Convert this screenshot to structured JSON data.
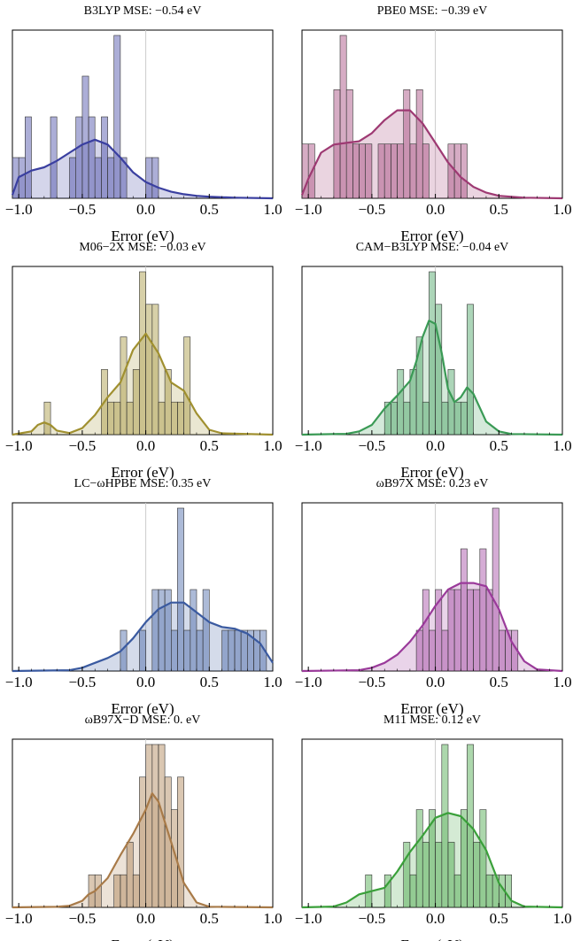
{
  "chart_data": [
    {
      "type": "bar",
      "title": "B3LYP MSE: −0.54 eV",
      "xlabel": "Error (eV)",
      "color": "#3a3fa0",
      "xlim": [
        -1.05,
        1.0
      ],
      "xticks": [
        "−1.0",
        "−0.5",
        "0.0",
        "0.5",
        "1.0"
      ],
      "xtick_values": [
        -1.0,
        -0.5,
        0.0,
        0.5,
        1.0
      ],
      "bin_width": 0.05,
      "bins": [
        {
          "x": -1.05,
          "count": 1
        },
        {
          "x": -1.0,
          "count": 1
        },
        {
          "x": -0.95,
          "count": 2
        },
        {
          "x": -0.75,
          "count": 2
        },
        {
          "x": -0.6,
          "count": 1
        },
        {
          "x": -0.55,
          "count": 2
        },
        {
          "x": -0.5,
          "count": 3
        },
        {
          "x": -0.45,
          "count": 2
        },
        {
          "x": -0.4,
          "count": 1
        },
        {
          "x": -0.35,
          "count": 2
        },
        {
          "x": -0.3,
          "count": 1
        },
        {
          "x": -0.25,
          "count": 4
        },
        {
          "x": -0.2,
          "count": 1
        },
        {
          "x": 0.0,
          "count": 1
        },
        {
          "x": 0.05,
          "count": 1
        }
      ],
      "density": [
        [
          -1.05,
          0.02
        ],
        [
          -1.0,
          0.13
        ],
        [
          -0.9,
          0.17
        ],
        [
          -0.8,
          0.19
        ],
        [
          -0.7,
          0.23
        ],
        [
          -0.6,
          0.28
        ],
        [
          -0.5,
          0.33
        ],
        [
          -0.4,
          0.36
        ],
        [
          -0.3,
          0.33
        ],
        [
          -0.2,
          0.25
        ],
        [
          -0.1,
          0.16
        ],
        [
          0.0,
          0.1
        ],
        [
          0.1,
          0.065
        ],
        [
          0.2,
          0.04
        ],
        [
          0.3,
          0.025
        ],
        [
          0.4,
          0.015
        ],
        [
          0.5,
          0.01
        ],
        [
          0.7,
          0.004
        ],
        [
          1.0,
          0.0
        ]
      ],
      "density_max": 1.0,
      "count_max": 4
    },
    {
      "type": "bar",
      "title": "PBE0 MSE: −0.39 eV",
      "xlabel": "Error (eV)",
      "color": "#9e3a73",
      "xlim": [
        -1.05,
        1.0
      ],
      "xticks": [
        "−1.0",
        "−0.5",
        "0.0",
        "0.5",
        "1.0"
      ],
      "xtick_values": [
        -1.0,
        -0.5,
        0.0,
        0.5,
        1.0
      ],
      "bin_width": 0.05,
      "bins": [
        {
          "x": -1.05,
          "count": 1
        },
        {
          "x": -1.0,
          "count": 1
        },
        {
          "x": -0.8,
          "count": 2
        },
        {
          "x": -0.75,
          "count": 3
        },
        {
          "x": -0.7,
          "count": 2
        },
        {
          "x": -0.65,
          "count": 1
        },
        {
          "x": -0.6,
          "count": 1
        },
        {
          "x": -0.55,
          "count": 1
        },
        {
          "x": -0.45,
          "count": 1
        },
        {
          "x": -0.4,
          "count": 1
        },
        {
          "x": -0.35,
          "count": 1
        },
        {
          "x": -0.3,
          "count": 1
        },
        {
          "x": -0.25,
          "count": 2
        },
        {
          "x": -0.2,
          "count": 1
        },
        {
          "x": -0.15,
          "count": 2
        },
        {
          "x": -0.1,
          "count": 1
        },
        {
          "x": 0.1,
          "count": 1
        },
        {
          "x": 0.15,
          "count": 1
        },
        {
          "x": 0.2,
          "count": 1
        }
      ],
      "density": [
        [
          -1.05,
          0.02
        ],
        [
          -1.0,
          0.12
        ],
        [
          -0.9,
          0.28
        ],
        [
          -0.8,
          0.33
        ],
        [
          -0.7,
          0.34
        ],
        [
          -0.6,
          0.35
        ],
        [
          -0.5,
          0.4
        ],
        [
          -0.4,
          0.48
        ],
        [
          -0.3,
          0.54
        ],
        [
          -0.2,
          0.54
        ],
        [
          -0.1,
          0.46
        ],
        [
          0.0,
          0.34
        ],
        [
          0.1,
          0.22
        ],
        [
          0.2,
          0.13
        ],
        [
          0.3,
          0.07
        ],
        [
          0.4,
          0.035
        ],
        [
          0.5,
          0.015
        ],
        [
          0.7,
          0.004
        ],
        [
          1.0,
          0.0
        ]
      ],
      "density_max": 1.0,
      "count_max": 3
    },
    {
      "type": "bar",
      "title": "M06−2X MSE: −0.03 eV",
      "xlabel": "Error (eV)",
      "color": "#a09030",
      "xlim": [
        -1.05,
        1.0
      ],
      "xticks": [
        "−1.0",
        "−0.5",
        "0.0",
        "0.5",
        "1.0"
      ],
      "xtick_values": [
        -1.0,
        -0.5,
        0.0,
        0.5,
        1.0
      ],
      "bin_width": 0.05,
      "bins": [
        {
          "x": -0.8,
          "count": 1
        },
        {
          "x": -0.35,
          "count": 2
        },
        {
          "x": -0.3,
          "count": 1
        },
        {
          "x": -0.25,
          "count": 1
        },
        {
          "x": -0.2,
          "count": 3
        },
        {
          "x": -0.15,
          "count": 1
        },
        {
          "x": -0.1,
          "count": 2
        },
        {
          "x": -0.05,
          "count": 5
        },
        {
          "x": 0.0,
          "count": 4
        },
        {
          "x": 0.05,
          "count": 4
        },
        {
          "x": 0.1,
          "count": 1
        },
        {
          "x": 0.15,
          "count": 2
        },
        {
          "x": 0.2,
          "count": 1
        },
        {
          "x": 0.25,
          "count": 1
        },
        {
          "x": 0.3,
          "count": 3
        }
      ],
      "density": [
        [
          -1.05,
          0.0
        ],
        [
          -0.9,
          0.02
        ],
        [
          -0.85,
          0.06
        ],
        [
          -0.8,
          0.075
        ],
        [
          -0.75,
          0.06
        ],
        [
          -0.7,
          0.025
        ],
        [
          -0.6,
          0.01
        ],
        [
          -0.5,
          0.04
        ],
        [
          -0.4,
          0.12
        ],
        [
          -0.3,
          0.23
        ],
        [
          -0.2,
          0.32
        ],
        [
          -0.1,
          0.52
        ],
        [
          0.0,
          0.62
        ],
        [
          0.1,
          0.5
        ],
        [
          0.2,
          0.32
        ],
        [
          0.3,
          0.27
        ],
        [
          0.4,
          0.13
        ],
        [
          0.5,
          0.03
        ],
        [
          0.6,
          0.008
        ],
        [
          1.0,
          0.0
        ]
      ],
      "density_max": 1.0,
      "count_max": 5
    },
    {
      "type": "bar",
      "title": "CAM−B3LYP MSE: −0.04 eV",
      "xlabel": "Error (eV)",
      "color": "#3a9a55",
      "xlim": [
        -1.05,
        1.0
      ],
      "xticks": [
        "−1.0",
        "−0.5",
        "0.0",
        "0.5",
        "1.0"
      ],
      "xtick_values": [
        -1.0,
        -0.5,
        0.0,
        0.5,
        1.0
      ],
      "bin_width": 0.05,
      "bins": [
        {
          "x": -0.4,
          "count": 1
        },
        {
          "x": -0.35,
          "count": 1
        },
        {
          "x": -0.3,
          "count": 2
        },
        {
          "x": -0.25,
          "count": 1
        },
        {
          "x": -0.2,
          "count": 2
        },
        {
          "x": -0.15,
          "count": 3
        },
        {
          "x": -0.1,
          "count": 1
        },
        {
          "x": -0.05,
          "count": 5
        },
        {
          "x": 0.0,
          "count": 4
        },
        {
          "x": 0.05,
          "count": 1
        },
        {
          "x": 0.1,
          "count": 2
        },
        {
          "x": 0.15,
          "count": 1
        },
        {
          "x": 0.2,
          "count": 1
        },
        {
          "x": 0.25,
          "count": 4
        }
      ],
      "density": [
        [
          -1.05,
          0.0
        ],
        [
          -0.7,
          0.005
        ],
        [
          -0.6,
          0.02
        ],
        [
          -0.5,
          0.06
        ],
        [
          -0.4,
          0.16
        ],
        [
          -0.3,
          0.24
        ],
        [
          -0.2,
          0.33
        ],
        [
          -0.15,
          0.45
        ],
        [
          -0.1,
          0.6
        ],
        [
          -0.05,
          0.7
        ],
        [
          0.0,
          0.68
        ],
        [
          0.05,
          0.5
        ],
        [
          0.1,
          0.28
        ],
        [
          0.15,
          0.2
        ],
        [
          0.2,
          0.23
        ],
        [
          0.25,
          0.29
        ],
        [
          0.3,
          0.25
        ],
        [
          0.4,
          0.08
        ],
        [
          0.5,
          0.02
        ],
        [
          0.6,
          0.004
        ],
        [
          1.0,
          0.0
        ]
      ],
      "density_max": 1.0,
      "count_max": 5
    },
    {
      "type": "bar",
      "title": "LC−ωHPBE MSE: 0.35 eV",
      "xlabel": "Error (eV)",
      "color": "#3a5aa0",
      "xlim": [
        -1.05,
        1.0
      ],
      "xticks": [
        "−1.0",
        "−0.5",
        "0.0",
        "0.5",
        "1.0"
      ],
      "xtick_values": [
        -1.0,
        -0.5,
        0.0,
        0.5,
        1.0
      ],
      "bin_width": 0.05,
      "bins": [
        {
          "x": -0.2,
          "count": 1
        },
        {
          "x": -0.05,
          "count": 1
        },
        {
          "x": 0.05,
          "count": 2
        },
        {
          "x": 0.1,
          "count": 2
        },
        {
          "x": 0.15,
          "count": 2
        },
        {
          "x": 0.2,
          "count": 1
        },
        {
          "x": 0.25,
          "count": 4
        },
        {
          "x": 0.3,
          "count": 1
        },
        {
          "x": 0.35,
          "count": 2
        },
        {
          "x": 0.4,
          "count": 1
        },
        {
          "x": 0.45,
          "count": 2
        },
        {
          "x": 0.6,
          "count": 1
        },
        {
          "x": 0.65,
          "count": 1
        },
        {
          "x": 0.7,
          "count": 1
        },
        {
          "x": 0.75,
          "count": 1
        },
        {
          "x": 0.8,
          "count": 1
        },
        {
          "x": 0.85,
          "count": 1
        },
        {
          "x": 0.9,
          "count": 1
        }
      ],
      "density": [
        [
          -1.05,
          0.0
        ],
        [
          -0.6,
          0.005
        ],
        [
          -0.5,
          0.02
        ],
        [
          -0.4,
          0.05
        ],
        [
          -0.3,
          0.08
        ],
        [
          -0.2,
          0.12
        ],
        [
          -0.1,
          0.2
        ],
        [
          0.0,
          0.3
        ],
        [
          0.1,
          0.38
        ],
        [
          0.2,
          0.42
        ],
        [
          0.3,
          0.42
        ],
        [
          0.4,
          0.36
        ],
        [
          0.5,
          0.3
        ],
        [
          0.6,
          0.27
        ],
        [
          0.7,
          0.26
        ],
        [
          0.8,
          0.23
        ],
        [
          0.9,
          0.17
        ],
        [
          1.0,
          0.05
        ]
      ],
      "density_max": 1.0,
      "count_max": 4
    },
    {
      "type": "bar",
      "title": "ωB97X MSE: 0.23 eV",
      "xlabel": "Error (eV)",
      "color": "#9a3a9a",
      "xlim": [
        -1.05,
        1.0
      ],
      "xticks": [
        "−1.0",
        "−0.5",
        "0.0",
        "0.5",
        "1.0"
      ],
      "xtick_values": [
        -1.0,
        -0.5,
        0.0,
        0.5,
        1.0
      ],
      "bin_width": 0.05,
      "bins": [
        {
          "x": -0.15,
          "count": 1
        },
        {
          "x": -0.1,
          "count": 2
        },
        {
          "x": -0.05,
          "count": 1
        },
        {
          "x": 0.0,
          "count": 2
        },
        {
          "x": 0.05,
          "count": 1
        },
        {
          "x": 0.1,
          "count": 2
        },
        {
          "x": 0.15,
          "count": 2
        },
        {
          "x": 0.2,
          "count": 3
        },
        {
          "x": 0.25,
          "count": 2
        },
        {
          "x": 0.3,
          "count": 2
        },
        {
          "x": 0.35,
          "count": 3
        },
        {
          "x": 0.4,
          "count": 2
        },
        {
          "x": 0.45,
          "count": 4
        },
        {
          "x": 0.5,
          "count": 1
        },
        {
          "x": 0.55,
          "count": 1
        },
        {
          "x": 0.6,
          "count": 1
        }
      ],
      "density": [
        [
          -1.05,
          0.0
        ],
        [
          -0.6,
          0.005
        ],
        [
          -0.5,
          0.02
        ],
        [
          -0.4,
          0.05
        ],
        [
          -0.3,
          0.1
        ],
        [
          -0.2,
          0.18
        ],
        [
          -0.1,
          0.28
        ],
        [
          0.0,
          0.4
        ],
        [
          0.1,
          0.5
        ],
        [
          0.2,
          0.54
        ],
        [
          0.3,
          0.54
        ],
        [
          0.4,
          0.52
        ],
        [
          0.5,
          0.38
        ],
        [
          0.6,
          0.18
        ],
        [
          0.7,
          0.06
        ],
        [
          0.8,
          0.01
        ],
        [
          1.0,
          0.0
        ]
      ],
      "density_max": 1.0,
      "count_max": 4
    },
    {
      "type": "bar",
      "title": "ωB97X−D MSE: 0. eV",
      "xlabel": "Error (eV)",
      "color": "#a87a48",
      "xlim": [
        -1.05,
        1.0
      ],
      "xticks": [
        "−1.0",
        "−0.5",
        "0.0",
        "0.5",
        "1.0"
      ],
      "xtick_values": [
        -1.0,
        -0.5,
        0.0,
        0.5,
        1.0
      ],
      "bin_width": 0.05,
      "bins": [
        {
          "x": -0.45,
          "count": 1
        },
        {
          "x": -0.4,
          "count": 1
        },
        {
          "x": -0.25,
          "count": 1
        },
        {
          "x": -0.2,
          "count": 1
        },
        {
          "x": -0.15,
          "count": 2
        },
        {
          "x": -0.1,
          "count": 1
        },
        {
          "x": -0.05,
          "count": 4
        },
        {
          "x": 0.0,
          "count": 5
        },
        {
          "x": 0.05,
          "count": 5
        },
        {
          "x": 0.1,
          "count": 5
        },
        {
          "x": 0.15,
          "count": 4
        },
        {
          "x": 0.2,
          "count": 3
        },
        {
          "x": 0.25,
          "count": 4
        }
      ],
      "density": [
        [
          -1.05,
          0.0
        ],
        [
          -0.7,
          0.003
        ],
        [
          -0.6,
          0.01
        ],
        [
          -0.5,
          0.04
        ],
        [
          -0.45,
          0.08
        ],
        [
          -0.4,
          0.1
        ],
        [
          -0.3,
          0.18
        ],
        [
          -0.2,
          0.32
        ],
        [
          -0.1,
          0.45
        ],
        [
          0.0,
          0.6
        ],
        [
          0.05,
          0.7
        ],
        [
          0.1,
          0.65
        ],
        [
          0.2,
          0.4
        ],
        [
          0.3,
          0.15
        ],
        [
          0.4,
          0.03
        ],
        [
          0.5,
          0.004
        ],
        [
          1.0,
          0.0
        ]
      ],
      "density_max": 1.0,
      "count_max": 5
    },
    {
      "type": "bar",
      "title": "M11 MSE: 0.12 eV",
      "xlabel": "Error (eV)",
      "color": "#3aa03a",
      "xlim": [
        -1.05,
        1.0
      ],
      "xticks": [
        "−1.0",
        "−0.5",
        "0.0",
        "0.5",
        "1.0"
      ],
      "xtick_values": [
        -1.0,
        -0.5,
        0.0,
        0.5,
        1.0
      ],
      "bin_width": 0.05,
      "bins": [
        {
          "x": -0.55,
          "count": 1
        },
        {
          "x": -0.4,
          "count": 1
        },
        {
          "x": -0.25,
          "count": 2
        },
        {
          "x": -0.2,
          "count": 1
        },
        {
          "x": -0.15,
          "count": 3
        },
        {
          "x": -0.1,
          "count": 2
        },
        {
          "x": -0.05,
          "count": 3
        },
        {
          "x": 0.0,
          "count": 2
        },
        {
          "x": 0.05,
          "count": 5
        },
        {
          "x": 0.1,
          "count": 2
        },
        {
          "x": 0.15,
          "count": 1
        },
        {
          "x": 0.2,
          "count": 3
        },
        {
          "x": 0.25,
          "count": 5
        },
        {
          "x": 0.3,
          "count": 2
        },
        {
          "x": 0.35,
          "count": 3
        },
        {
          "x": 0.4,
          "count": 1
        },
        {
          "x": 0.45,
          "count": 1
        },
        {
          "x": 0.5,
          "count": 1
        },
        {
          "x": 0.55,
          "count": 1
        }
      ],
      "density": [
        [
          -1.05,
          0.0
        ],
        [
          -0.8,
          0.005
        ],
        [
          -0.7,
          0.03
        ],
        [
          -0.6,
          0.08
        ],
        [
          -0.5,
          0.1
        ],
        [
          -0.4,
          0.12
        ],
        [
          -0.3,
          0.22
        ],
        [
          -0.2,
          0.34
        ],
        [
          -0.1,
          0.44
        ],
        [
          0.0,
          0.55
        ],
        [
          0.1,
          0.58
        ],
        [
          0.2,
          0.56
        ],
        [
          0.3,
          0.48
        ],
        [
          0.4,
          0.35
        ],
        [
          0.5,
          0.15
        ],
        [
          0.6,
          0.04
        ],
        [
          0.7,
          0.005
        ],
        [
          1.0,
          0.0
        ]
      ],
      "density_max": 1.0,
      "count_max": 5
    }
  ]
}
